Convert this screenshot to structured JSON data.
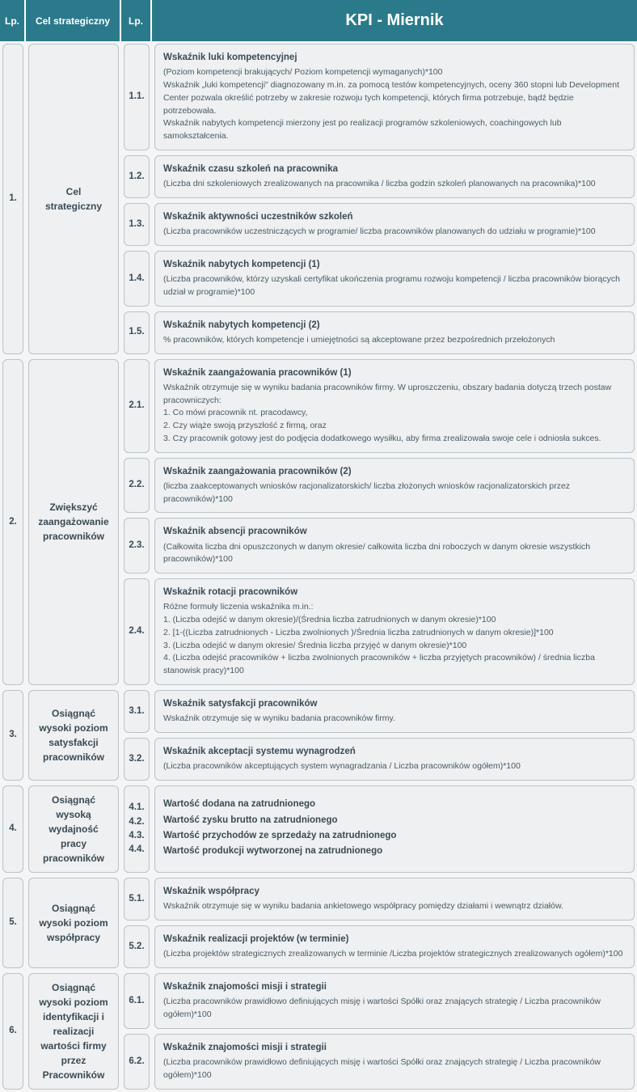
{
  "colors": {
    "header_bg": "#2b7a8c",
    "header_text": "#ffffff",
    "cell_bg": "#eef0f1",
    "cell_border": "#b8c4cb",
    "text": "#3a4a55",
    "desc_text": "#4a5a65"
  },
  "headers": {
    "lp1": "Lp.",
    "goal": "Cel strategiczny",
    "lp2": "Lp.",
    "kpi": "KPI - Miernik"
  },
  "groups": [
    {
      "lp": "1.",
      "goal": "Cel strategiczny",
      "rows": [
        {
          "sub": "1.1.",
          "title": "Wskaźnik luki kompetencyjnej",
          "desc": "(Poziom kompetencji brakujących/ Poziom kompetencji wymaganych)*100\nWskaźnik „luki kompetencji\" diagnozowany m.in. za pomocą testów kompetencyjnych, oceny 360 stopni lub Development Center pozwala określić potrzeby w zakresie rozwoju tych kompetencji, których firma potrzebuje, bądź będzie potrzebowała.\nWskaźnik nabytych kompetencji mierzony jest po realizacji programów szkoleniowych, coachingowych lub samokształcenia."
        },
        {
          "sub": "1.2.",
          "title": "Wskaźnik czasu szkoleń na pracownika",
          "desc": "(Liczba dni szkoleniowych zrealizowanych na pracownika / liczba godzin szkoleń planowanych na pracownika)*100"
        },
        {
          "sub": "1.3.",
          "title": "Wskaźnik aktywności uczestników szkoleń",
          "desc": "(Liczba pracowników uczestniczących w programie/ liczba pracowników planowanych do udziału w programie)*100"
        },
        {
          "sub": "1.4.",
          "title": "Wskaźnik nabytych kompetencji (1)",
          "desc": "(Liczba pracowników, którzy uzyskali certyfikat ukończenia programu rozwoju kompetencji / liczba pracowników biorących udział w programie)*100"
        },
        {
          "sub": "1.5.",
          "title": "Wskaźnik nabytych kompetencji (2)",
          "desc": "% pracowników, których kompetencje i umiejętności są akceptowane przez bezpośrednich przełożonych"
        }
      ]
    },
    {
      "lp": "2.",
      "goal": "Zwiększyć zaangażowanie pracowników",
      "rows": [
        {
          "sub": "2.1.",
          "title": "Wskaźnik zaangażowania pracowników (1)",
          "desc": "Wskaźnik otrzymuje się w wyniku badania pracowników firmy. W uproszczeniu, obszary badania dotyczą trzech postaw pracowniczych:\n1. Co mówi pracownik nt. pracodawcy,\n2. Czy wiąże swoją przyszłość z firmą, oraz\n3. Czy pracownik gotowy jest do podjęcia dodatkowego wysiłku, aby firma zrealizowała swoje cele i odniosła sukces."
        },
        {
          "sub": "2.2.",
          "title": "Wskaźnik zaangażowania pracowników (2)",
          "desc": "(liczba zaakceptowanych wniosków racjonalizatorskich/ liczba złożonych wniosków racjonalizatorskich przez pracowników)*100"
        },
        {
          "sub": "2.3.",
          "title": "Wskaźnik absencji pracowników",
          "desc": "(Całkowita liczba dni opuszczonych w danym okresie/ całkowita liczba dni roboczych w danym okresie wszystkich pracowników)*100"
        },
        {
          "sub": "2.4.",
          "title": "Wskaźnik rotacji pracowników",
          "desc": "Różne formuły liczenia wskaźnika m.in.:\n1. (Liczba odejść w danym okresie)/(Średnia liczba zatrudnionych w danym okresie)*100\n2. [1-((Liczba zatrudnionych - Liczba zwolnionych )/Średnia liczba zatrudnionych w danym okresie)]*100\n3. (Liczba odejść w danym okresie/ Średnia liczba przyjęć w danym okresie)*100\n4. (Liczba odejść pracowników + liczba zwolnionych pracowników + liczba przyjętych pracowników) / średnia liczba stanowisk pracy)*100"
        }
      ]
    },
    {
      "lp": "3.",
      "goal": "Osiągnąć wysoki poziom satysfakcji pracowników",
      "rows": [
        {
          "sub": "3.1.",
          "title": "Wskaźnik satysfakcji pracowników",
          "desc": "Wskaźnik otrzymuje się w wyniku badania pracowników firmy."
        },
        {
          "sub": "3.2.",
          "title": "Wskaźnik akceptacji systemu wynagrodzeń",
          "desc": "(Liczba pracowników akceptujących system wynagradzania / Liczba pracowników ogółem)*100"
        }
      ]
    },
    {
      "lp": "4.",
      "goal": "Osiągnąć wysoką wydajność pracy pracowników",
      "combined": {
        "subs": [
          "4.1.",
          "4.2.",
          "4.3.",
          "4.4."
        ],
        "titles": [
          "Wartość dodana na zatrudnionego",
          "Wartość zysku brutto na zatrudnionego",
          "Wartość przychodów ze sprzedaży na zatrudnionego",
          "Wartość produkcji wytworzonej na zatrudnionego"
        ]
      }
    },
    {
      "lp": "5.",
      "goal": "Osiągnąć wysoki poziom współpracy",
      "rows": [
        {
          "sub": "5.1.",
          "title": "Wskaźnik współpracy",
          "desc": "Wskaźnik otrzymuje się w wyniku badania ankietowego współpracy pomiędzy działami i wewnątrz działów."
        },
        {
          "sub": "5.2.",
          "title": "Wskaźnik realizacji projektów (w terminie)",
          "desc": "(Liczba projektów strategicznych zrealizowanych w terminie  /Liczba projektów strategicznych zrealizowanych ogółem)*100"
        }
      ]
    },
    {
      "lp": "6.",
      "goal": "Osiągnąć wysoki poziom identyfikacji i realizacji wartości firmy przez Pracowników",
      "rows": [
        {
          "sub": "6.1.",
          "title": "Wskaźnik znajomości misji i strategii",
          "desc": "(Liczba pracowników prawidłowo definiujących misję i wartości Spółki oraz znających strategię / Liczba pracowników ogółem)*100"
        },
        {
          "sub": "6.2.",
          "title": "Wskaźnik znajomości misji i strategii",
          "desc": "(Liczba pracowników prawidłowo definiujących misję i wartości Spółki oraz znających strategię / Liczba pracowników ogółem)*100"
        }
      ]
    }
  ]
}
